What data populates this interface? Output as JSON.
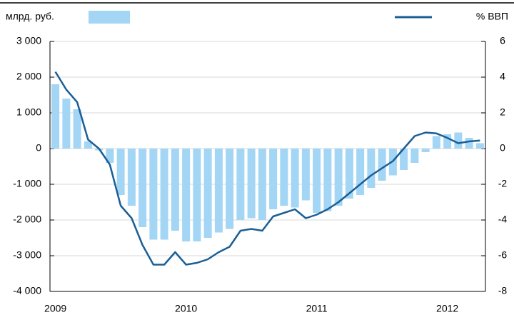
{
  "chart_data": {
    "type": "bar_line",
    "categories": [
      "2009",
      null,
      null,
      null,
      null,
      null,
      null,
      null,
      null,
      null,
      null,
      null,
      "2010",
      null,
      null,
      null,
      null,
      null,
      null,
      null,
      null,
      null,
      null,
      null,
      "2011",
      null,
      null,
      null,
      null,
      null,
      null,
      null,
      null,
      null,
      null,
      null,
      "2012",
      null,
      null,
      null
    ],
    "series": [
      {
        "name": "млрд. руб.",
        "type": "bar",
        "color": "#a3d5f5",
        "values": [
          1800,
          1400,
          1100,
          200,
          -50,
          -400,
          -1300,
          -1600,
          -2200,
          -2550,
          -2550,
          -2300,
          -2600,
          -2600,
          -2500,
          -2350,
          -2250,
          -2000,
          -1950,
          -2000,
          -1700,
          -1600,
          -1650,
          -1450,
          -1800,
          -1750,
          -1600,
          -1400,
          -1300,
          -1100,
          -900,
          -750,
          -600,
          -400,
          -100,
          350,
          400,
          450,
          300,
          150
        ]
      },
      {
        "name": "% ВВП",
        "type": "line",
        "axis": "y2",
        "color": "#1a5f96",
        "values": [
          4.3,
          3.3,
          2.6,
          0.5,
          0,
          -0.9,
          -3.2,
          -3.9,
          -5.4,
          -6.5,
          -6.5,
          -5.8,
          -6.5,
          -6.4,
          -6.2,
          -5.8,
          -5.5,
          -4.6,
          -4.5,
          -4.6,
          -3.8,
          -3.6,
          -3.4,
          -3.9,
          -3.7,
          -3.4,
          -3.0,
          -2.5,
          -2.0,
          -1.5,
          -1.1,
          -0.7,
          0,
          0.7,
          0.9,
          0.85,
          0.6,
          0.3,
          0.4,
          0.45
        ]
      }
    ],
    "ylim": [
      -4000,
      3000
    ],
    "yticks": [
      {
        "value": -4000,
        "label": "-4 000"
      },
      {
        "value": -3000,
        "label": "-3 000"
      },
      {
        "value": -2000,
        "label": "-2 000"
      },
      {
        "value": -1000,
        "label": "-1 000"
      },
      0,
      {
        "value": 1000,
        "label": "1 000"
      },
      {
        "value": 2000,
        "label": "2 000"
      },
      {
        "value": 3000,
        "label": "3 000"
      }
    ],
    "y2lim": [
      -8,
      6
    ],
    "y2ticks": [
      -8,
      -6,
      -4,
      -2,
      0,
      2,
      4,
      6
    ],
    "grid": true
  }
}
